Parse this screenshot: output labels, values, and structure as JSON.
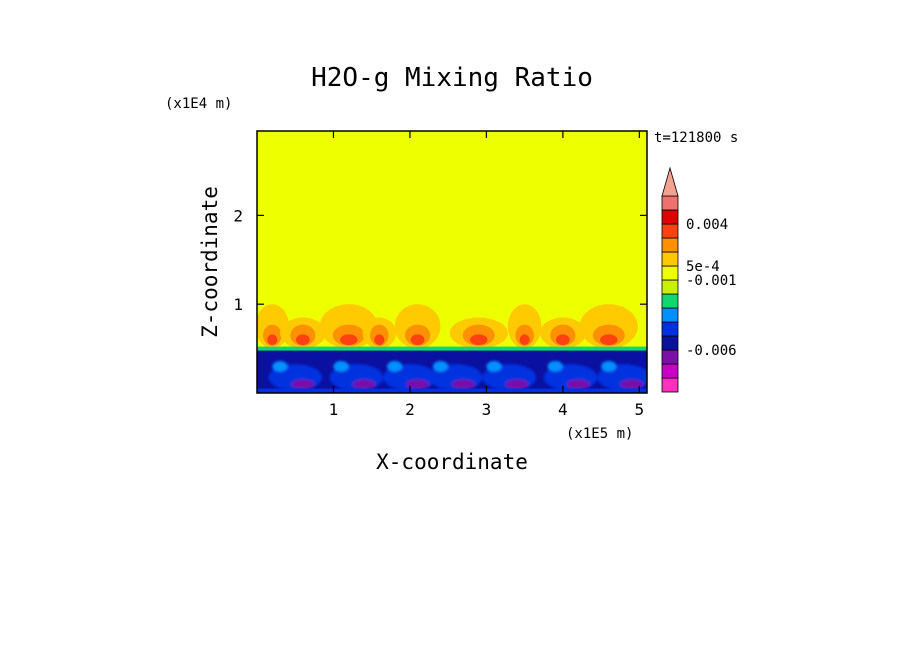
{
  "chart_data": {
    "type": "heatmap",
    "title": "H2O-g Mixing Ratio",
    "xlabel": "X-coordinate",
    "ylabel": "Z-coordinate",
    "x_scale_label": "(x1E5 m)",
    "y_scale_label": "(x1E4 m)",
    "time_label": "t=121800 s",
    "xlim": [
      0,
      5.1
    ],
    "ylim": [
      0,
      2.95
    ],
    "x_ticks": [
      {
        "value": 1,
        "label": "1"
      },
      {
        "value": 2,
        "label": "2"
      },
      {
        "value": 3,
        "label": "3"
      },
      {
        "value": 4,
        "label": "4"
      },
      {
        "value": 5,
        "label": "5"
      }
    ],
    "y_ticks": [
      {
        "value": 1,
        "label": "1"
      },
      {
        "value": 2,
        "label": "2"
      }
    ],
    "background_level_color": "#eeff00",
    "colorbar": {
      "extend": "max",
      "extend_color": "#f5a090",
      "colors": [
        "#ff30c0",
        "#c800c8",
        "#7a10a8",
        "#0a10a0",
        "#0030e0",
        "#0090ff",
        "#10d870",
        "#c8f000",
        "#eeff00",
        "#ffc800",
        "#ff9000",
        "#ff4010",
        "#e00000",
        "#f07070"
      ],
      "labels": [
        {
          "level": 3,
          "text": "-0.006"
        },
        {
          "level": 8,
          "text": "-0.001"
        },
        {
          "level": 9,
          "text": "5e-4"
        },
        {
          "level": 12,
          "text": "0.004"
        }
      ]
    },
    "features": {
      "dry_layer_top": 0.5,
      "moist_layer_top": 1.0,
      "moist_plume_centers_x": [
        0.2,
        0.6,
        1.2,
        1.6,
        2.1,
        2.9,
        3.5,
        4.0,
        4.6
      ],
      "dry_core_centers_x": [
        0.5,
        1.3,
        2.0,
        2.6,
        3.3,
        4.1,
        4.8
      ]
    }
  }
}
